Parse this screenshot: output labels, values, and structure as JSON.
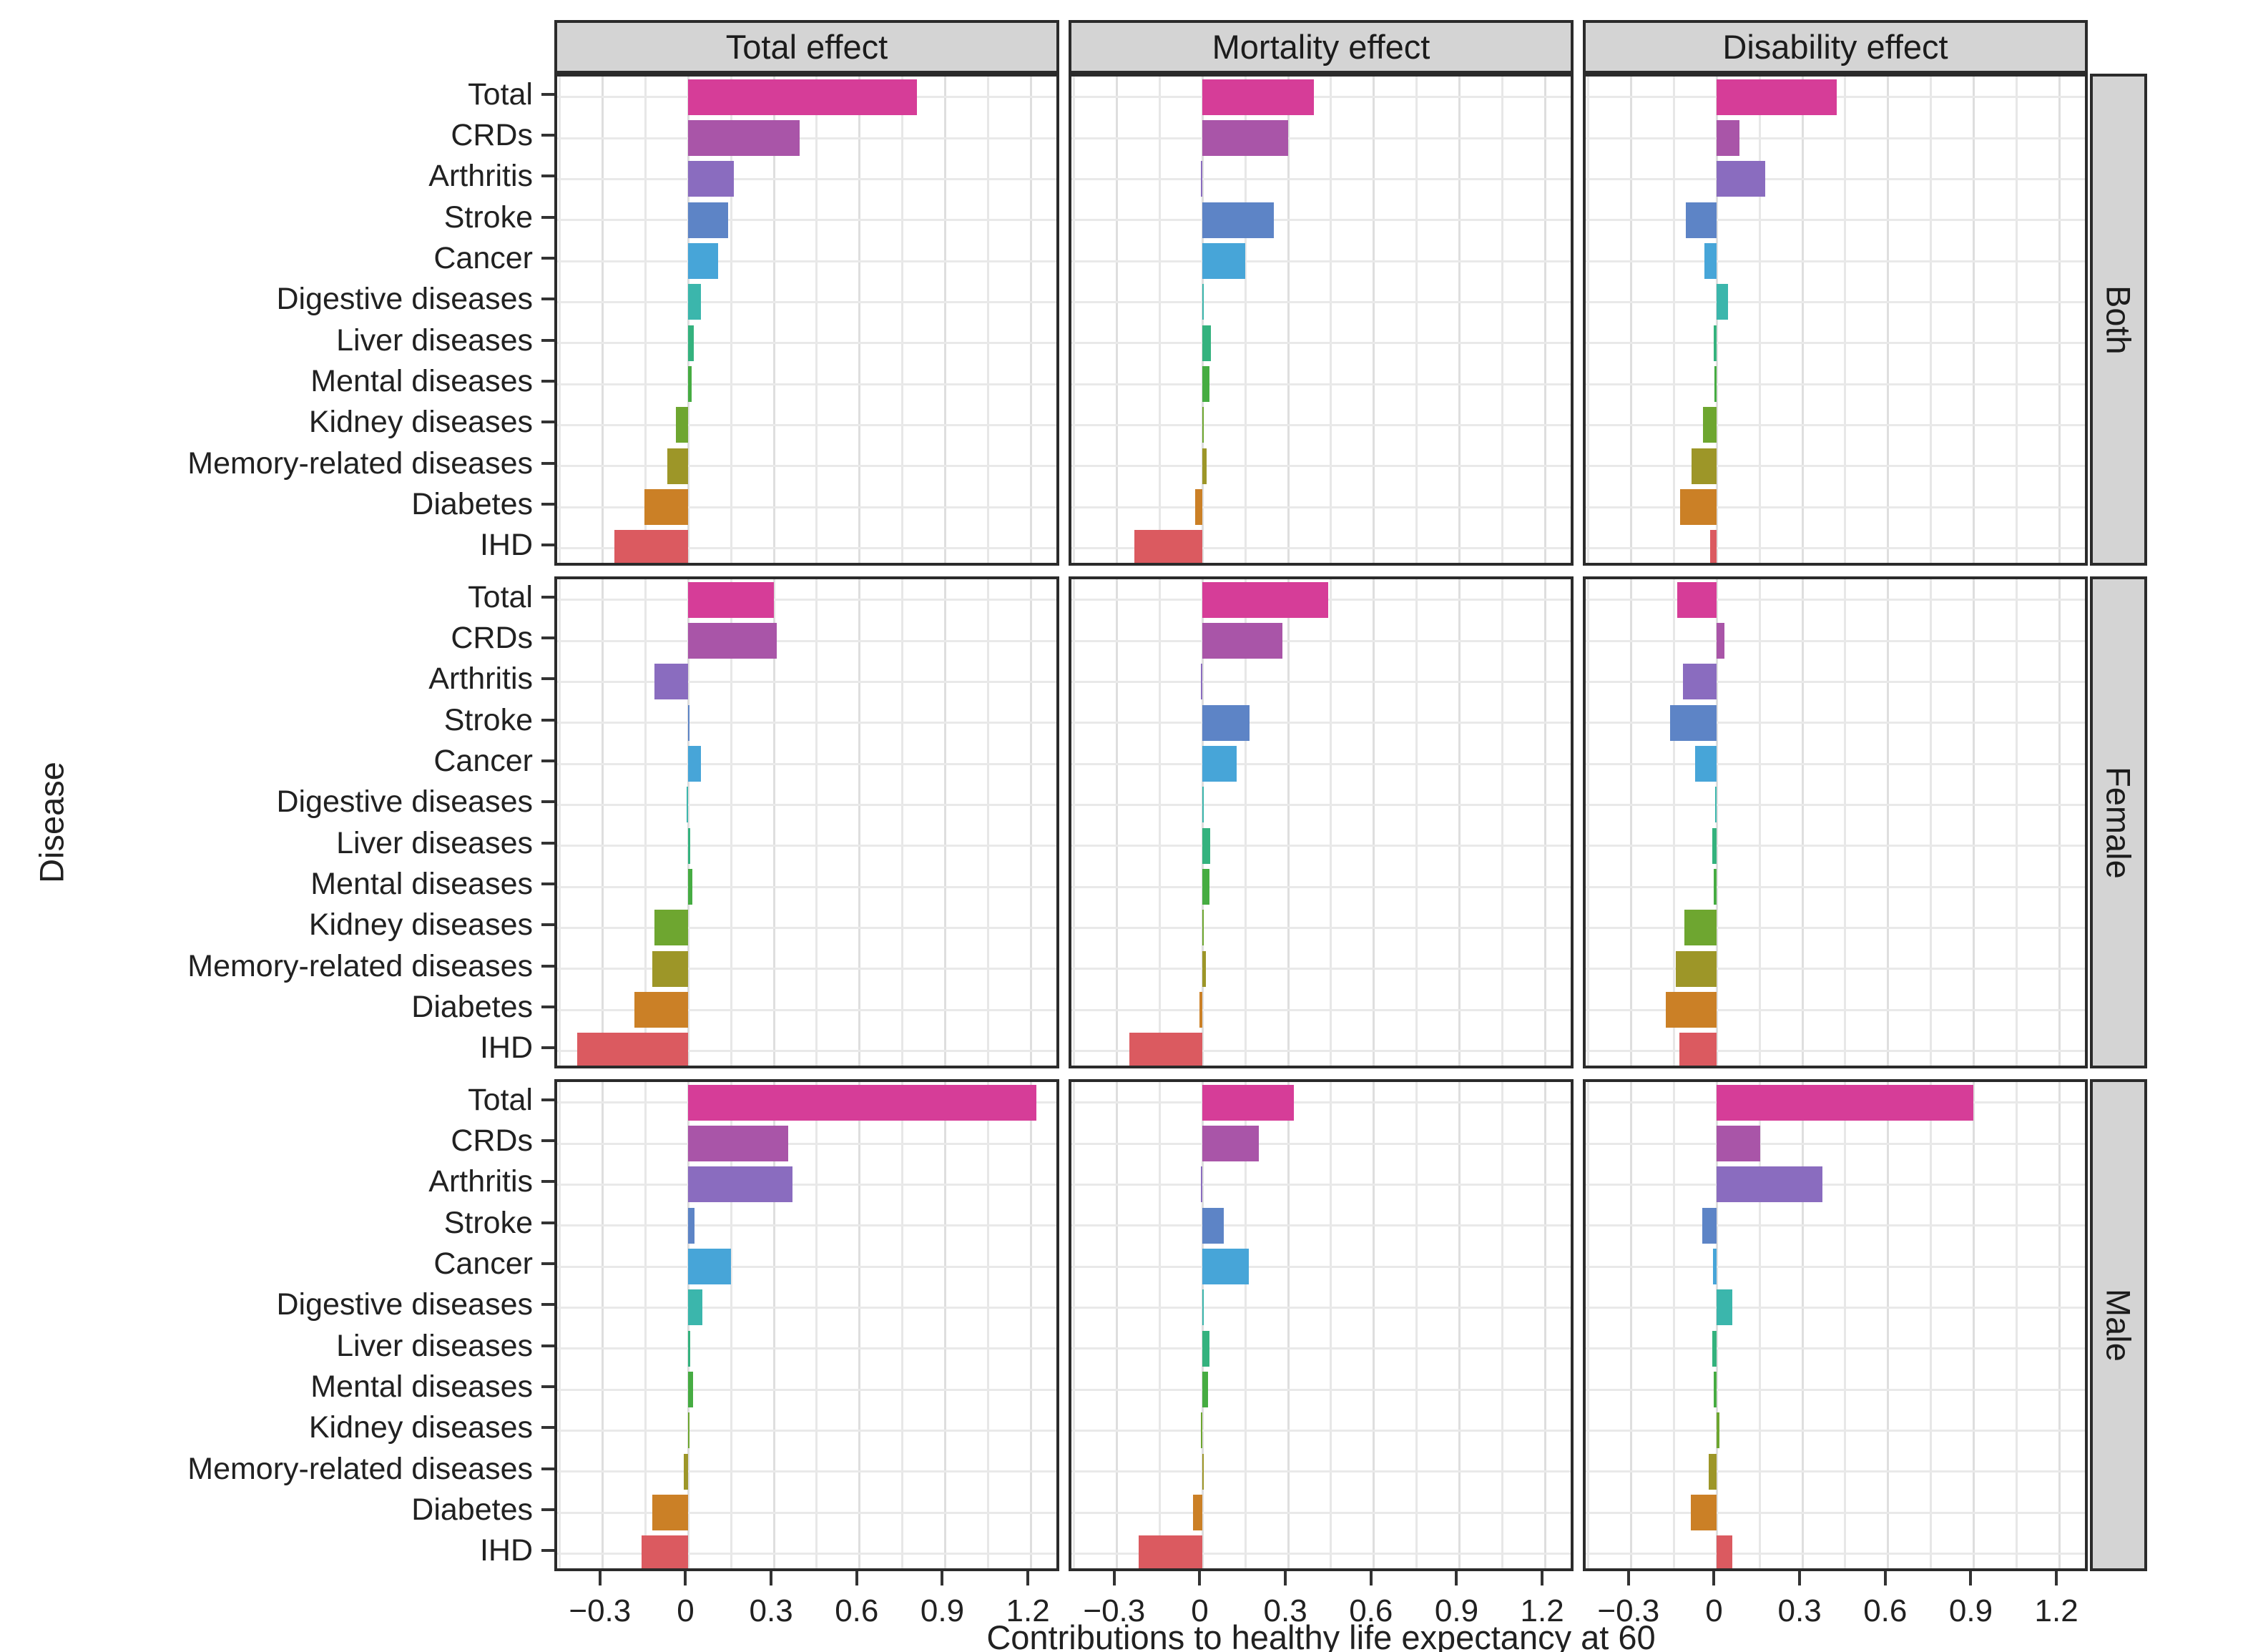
{
  "figure": {
    "x_axis": {
      "title": "Contributions to healthy life expectancy at 60",
      "tick_labels": [
        "−0.3",
        "0",
        "0.3",
        "0.6",
        "0.9",
        "1.2"
      ]
    },
    "y_axis": {
      "title": "Disease"
    },
    "col_facets": [
      "Total effect",
      "Mortality effect",
      "Disability effect"
    ],
    "row_facets": [
      "Both",
      "Female",
      "Male"
    ],
    "strip_bg": "#d4d4d4",
    "panel_border": "#2b2b2b",
    "gridline_color": "#e7e7e7"
  },
  "chart_data": {
    "type": "bar",
    "orientation": "horizontal",
    "title": "",
    "xlabel": "Contributions to healthy life expectancy at 60",
    "ylabel": "Disease",
    "x_range": [
      -0.46,
      1.31
    ],
    "x_ticks": [
      -0.3,
      0,
      0.3,
      0.6,
      0.9,
      1.2
    ],
    "grid_minor_step": 0.15,
    "legend": "none",
    "facet_cols": [
      "Total effect",
      "Mortality effect",
      "Disability effect"
    ],
    "facet_rows": [
      "Both",
      "Female",
      "Male"
    ],
    "categories": [
      "Total",
      "CRDs",
      "Arthritis",
      "Stroke",
      "Cancer",
      "Digestive diseases",
      "Liver diseases",
      "Mental diseases",
      "Kidney diseases",
      "Memory-related diseases",
      "Diabetes",
      "IHD"
    ],
    "bar_colors": {
      "Total": "#d63d98",
      "CRDs": "#a955a8",
      "Arthritis": "#8a6cbf",
      "Stroke": "#5d84c6",
      "Cancer": "#47a5d8",
      "Digestive diseases": "#3bb6ac",
      "Liver diseases": "#34b27e",
      "Mental diseases": "#46ac42",
      "Kidney diseases": "#6ea630",
      "Memory-related diseases": "#9d9628",
      "Diabetes": "#cb8026",
      "IHD": "#db5a60"
    },
    "values": {
      "Both": {
        "Total effect": [
          0.8,
          0.39,
          0.16,
          0.14,
          0.105,
          0.045,
          0.018,
          0.012,
          -0.045,
          -0.075,
          -0.155,
          -0.26
        ],
        "Mortality effect": [
          0.39,
          0.3,
          -0.006,
          0.25,
          0.15,
          0.005,
          0.03,
          0.024,
          0.005,
          0.013,
          -0.026,
          -0.24
        ],
        "Disability effect": [
          0.42,
          0.08,
          0.17,
          -0.11,
          -0.045,
          0.038,
          -0.01,
          -0.008,
          -0.048,
          -0.088,
          -0.13,
          -0.025
        ]
      },
      "Female": {
        "Total effect": [
          0.3,
          0.31,
          -0.12,
          0.004,
          0.045,
          -0.005,
          0.006,
          0.014,
          -0.118,
          -0.127,
          -0.19,
          -0.39
        ],
        "Mortality effect": [
          0.44,
          0.28,
          -0.006,
          0.165,
          0.12,
          0.003,
          0.027,
          0.025,
          0.004,
          0.012,
          -0.012,
          -0.256
        ],
        "Disability effect": [
          -0.14,
          0.027,
          -0.12,
          -0.163,
          -0.077,
          -0.007,
          -0.016,
          -0.012,
          -0.115,
          -0.143,
          -0.178,
          -0.132
        ]
      },
      "Male": {
        "Total effect": [
          1.22,
          0.35,
          0.366,
          0.021,
          0.15,
          0.05,
          0.007,
          0.016,
          0.005,
          -0.016,
          -0.126,
          -0.165
        ],
        "Mortality effect": [
          0.32,
          0.198,
          -0.005,
          0.073,
          0.162,
          0.004,
          0.024,
          0.018,
          -0.007,
          0.005,
          -0.035,
          -0.224
        ],
        "Disability effect": [
          0.9,
          0.151,
          0.37,
          -0.051,
          -0.014,
          0.053,
          -0.015,
          -0.01,
          0.01,
          -0.03,
          -0.091,
          0.053
        ]
      }
    }
  }
}
